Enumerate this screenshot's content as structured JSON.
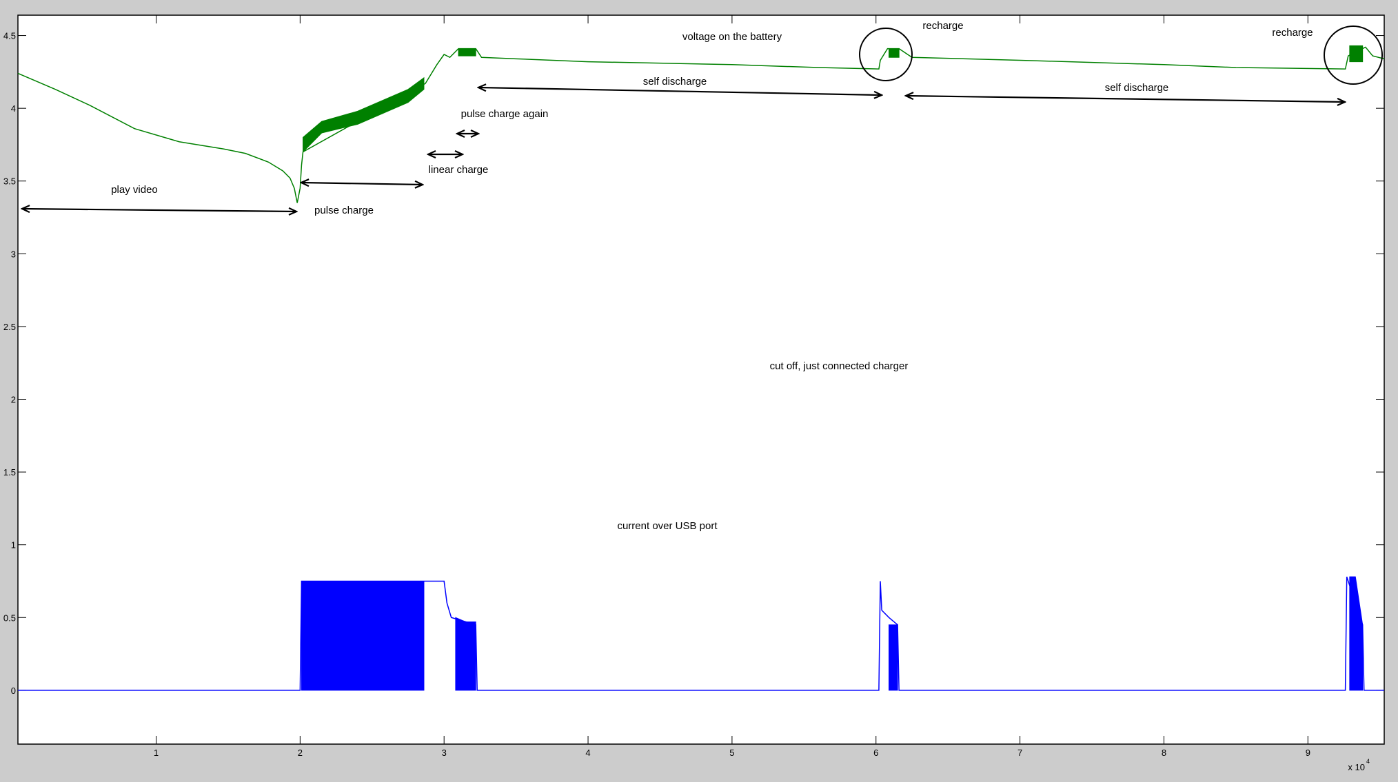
{
  "chart_data": {
    "type": "line",
    "title": "",
    "xlabel": "",
    "ylabel": "",
    "x_multiplier_label": "x 10",
    "x_multiplier_exponent": "4",
    "xlim": [
      0.04,
      9.53
    ],
    "ylim": [
      -0.37,
      4.64
    ],
    "grid": false,
    "x_ticks": [
      "1",
      "2",
      "3",
      "4",
      "5",
      "6",
      "7",
      "8",
      "9"
    ],
    "y_ticks": [
      "0",
      "0.5",
      "1",
      "1.5",
      "2",
      "2.5",
      "3",
      "3.5",
      "4",
      "4.5"
    ],
    "series": [
      {
        "color": "#008000",
        "line": [
          [
            0.04,
            4.24
          ],
          [
            0.3,
            4.13
          ],
          [
            0.54,
            4.02
          ],
          [
            0.85,
            3.86
          ],
          [
            1.16,
            3.77
          ],
          [
            1.47,
            3.72
          ],
          [
            1.62,
            3.69
          ],
          [
            1.78,
            3.63
          ],
          [
            1.88,
            3.57
          ],
          [
            1.93,
            3.52
          ],
          [
            1.96,
            3.45
          ],
          [
            1.98,
            3.35
          ],
          [
            2.0,
            3.45
          ],
          [
            2.01,
            3.61
          ],
          [
            2.02,
            3.7
          ],
          [
            2.87,
            4.17
          ],
          [
            2.95,
            4.3
          ],
          [
            3.0,
            4.37
          ],
          [
            3.04,
            4.35
          ],
          [
            3.1,
            4.41
          ],
          [
            3.22,
            4.41
          ],
          [
            3.26,
            4.35
          ],
          [
            3.5,
            4.34
          ],
          [
            4.0,
            4.32
          ],
          [
            5.0,
            4.3
          ],
          [
            5.6,
            4.28
          ],
          [
            6.02,
            4.27
          ],
          [
            6.03,
            4.33
          ],
          [
            6.08,
            4.41
          ],
          [
            6.16,
            4.41
          ],
          [
            6.25,
            4.35
          ],
          [
            7.0,
            4.33
          ],
          [
            8.0,
            4.3
          ],
          [
            8.5,
            4.28
          ],
          [
            9.26,
            4.27
          ],
          [
            9.28,
            4.36
          ],
          [
            9.4,
            4.42
          ],
          [
            9.45,
            4.36
          ],
          [
            9.53,
            4.34
          ]
        ],
        "bands": [
          {
            "x": [
              2.02,
              2.15,
              2.4,
              2.75,
              2.86
            ],
            "upper": [
              3.8,
              3.91,
              3.98,
              4.13,
              4.21
            ],
            "lower": [
              3.7,
              3.83,
              3.89,
              4.04,
              4.13
            ]
          },
          {
            "x": [
              3.1,
              3.22
            ],
            "upper": [
              4.41,
              4.41
            ],
            "lower": [
              4.36,
              4.36
            ]
          },
          {
            "x": [
              6.09,
              6.16
            ],
            "upper": [
              4.41,
              4.41
            ],
            "lower": [
              4.35,
              4.35
            ]
          },
          {
            "x": [
              9.29,
              9.38
            ],
            "upper": [
              4.43,
              4.43
            ],
            "lower": [
              4.32,
              4.32
            ]
          }
        ]
      },
      {
        "color": "#0000ff",
        "line": [
          [
            0.04,
            0
          ],
          [
            2.0,
            0
          ],
          [
            2.01,
            0.75
          ],
          [
            3.0,
            0.75
          ],
          [
            3.02,
            0.6
          ],
          [
            3.05,
            0.5
          ],
          [
            3.22,
            0.45
          ],
          [
            3.23,
            0
          ],
          [
            6.02,
            0
          ],
          [
            6.03,
            0.75
          ],
          [
            6.04,
            0.55
          ],
          [
            6.09,
            0.5
          ],
          [
            6.15,
            0.45
          ],
          [
            6.16,
            0
          ],
          [
            9.26,
            0
          ],
          [
            9.27,
            0.78
          ],
          [
            9.38,
            0.45
          ],
          [
            9.39,
            0
          ],
          [
            9.53,
            0
          ]
        ],
        "bands": [
          {
            "x": [
              2.01,
              2.86
            ],
            "upper": [
              0.75,
              0.75
            ],
            "lower": [
              0,
              0
            ]
          },
          {
            "x": [
              3.08,
              3.15,
              3.22
            ],
            "upper": [
              0.5,
              0.47,
              0.47
            ],
            "lower": [
              0,
              0,
              0
            ]
          },
          {
            "x": [
              6.09,
              6.15
            ],
            "upper": [
              0.45,
              0.45
            ],
            "lower": [
              0,
              0
            ]
          },
          {
            "x": [
              9.29,
              9.33,
              9.38
            ],
            "upper": [
              0.78,
              0.78,
              0.45
            ],
            "lower": [
              0,
              0,
              0
            ]
          }
        ]
      }
    ],
    "annotations": {
      "voltage_label": "voltage on the battery",
      "recharge_1": "recharge",
      "recharge_2": "recharge",
      "self_discharge_1": "self discharge",
      "self_discharge_2": "self discharge",
      "pulse_charge_again": "pulse charge again",
      "linear_charge": "linear charge",
      "play_video": "play video",
      "pulse_charge": "pulse charge",
      "cut_off": "cut off, just connected charger",
      "current_label": "current over USB port"
    }
  }
}
